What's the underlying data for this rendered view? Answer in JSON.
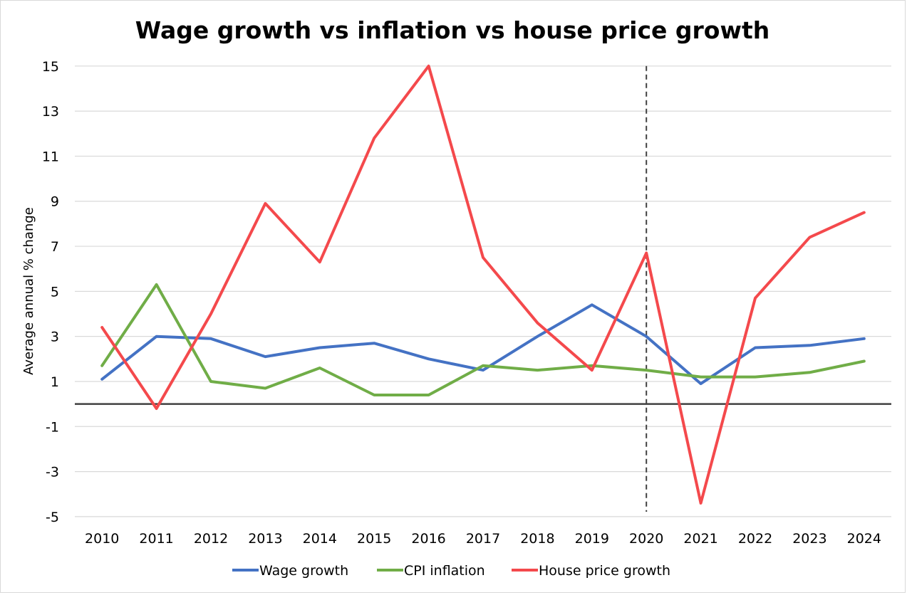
{
  "chart_data": {
    "type": "line",
    "title": "Wage growth vs inflation vs house price growth",
    "xlabel": "",
    "ylabel": "Average annual % change",
    "categories": [
      "2010",
      "2011",
      "2012",
      "2013",
      "2014",
      "2015",
      "2016",
      "2017",
      "2018",
      "2019",
      "2020",
      "2021",
      "2022",
      "2023",
      "2024"
    ],
    "ylim": [
      -5,
      15
    ],
    "yticks": [
      15,
      13,
      11,
      9,
      7,
      5,
      3,
      1,
      -1,
      -3,
      -5
    ],
    "grid": true,
    "zero_line": true,
    "reference_line": {
      "category": "2020",
      "style": "dashed"
    },
    "legend_position": "bottom",
    "series": [
      {
        "name": "Wage growth",
        "color": "#4472C4",
        "values": [
          1.1,
          3.0,
          2.9,
          2.1,
          2.5,
          2.7,
          2.0,
          1.5,
          3.0,
          4.4,
          3.0,
          0.9,
          2.5,
          2.6,
          2.9
        ]
      },
      {
        "name": "CPI inflation",
        "color": "#70AD47",
        "values": [
          1.7,
          5.3,
          1.0,
          0.7,
          1.6,
          0.4,
          0.4,
          1.7,
          1.5,
          1.7,
          1.5,
          1.2,
          1.2,
          1.4,
          1.9
        ]
      },
      {
        "name": "House price growth",
        "color": "#F4494C",
        "values": [
          3.4,
          -0.2,
          4.0,
          8.9,
          6.3,
          11.8,
          15.0,
          6.5,
          3.6,
          1.5,
          6.7,
          -4.4,
          4.7,
          7.4,
          8.5
        ]
      }
    ]
  }
}
